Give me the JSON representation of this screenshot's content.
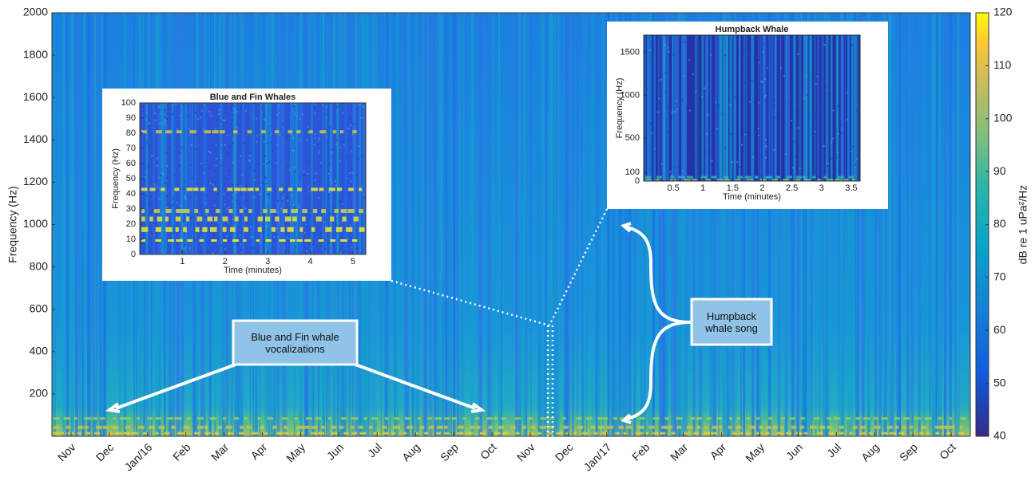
{
  "chart_data": [
    {
      "type": "heatmap",
      "ylabel": "Frequency (Hz)",
      "categories": [
        "Nov",
        "Dec",
        "Jan/16",
        "Feb",
        "Mar",
        "Apr",
        "May",
        "Jun",
        "Jul",
        "Aug",
        "Sep",
        "Oct",
        "Nov",
        "Dec",
        "Jan/17",
        "Feb",
        "Mar",
        "Apr",
        "May",
        "Jun",
        "Jul",
        "Aug",
        "Sep",
        "Oct"
      ],
      "ylim": [
        0,
        2000
      ],
      "yticks": [
        200,
        400,
        600,
        800,
        1000,
        1200,
        1400,
        1600,
        1800,
        2000
      ],
      "colorbar": {
        "label": "dB re 1 uPa²/Hz",
        "lim": [
          40,
          120
        ],
        "ticks": [
          40,
          50,
          60,
          70,
          80,
          90,
          100,
          110,
          120
        ]
      },
      "annotations": [
        "Blue and Fin whale vocalizations",
        "Humpback whale song"
      ]
    },
    {
      "type": "heatmap",
      "title": "Blue and Fin Whales",
      "xlabel": "Time (minutes)",
      "ylabel": "Frequency (Hz)",
      "xlim": [
        0,
        5.3
      ],
      "xticks": [
        1,
        2,
        3,
        4,
        5
      ],
      "ylim": [
        0,
        100
      ],
      "yticks": [
        0,
        10,
        20,
        30,
        40,
        50,
        60,
        70,
        80,
        90,
        100
      ]
    },
    {
      "type": "heatmap",
      "title": "Humpback Whale",
      "xlabel": "Time (minutes)",
      "ylabel": "Frequency (Hz)",
      "xlim": [
        0,
        3.65
      ],
      "xticks": [
        0.5,
        1,
        1.5,
        2,
        2.5,
        3,
        3.5
      ],
      "ylim": [
        0,
        1700
      ],
      "yticks": [
        0,
        100,
        500,
        1000,
        1500
      ]
    }
  ]
}
